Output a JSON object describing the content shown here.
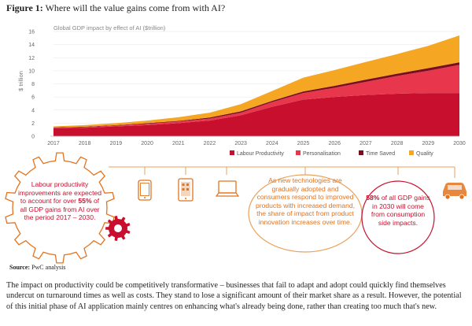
{
  "figure": {
    "label": "Figure 1:",
    "title": "Where will the value gains come from with AI?"
  },
  "chart_data": {
    "type": "area",
    "stacked": true,
    "subtitle": "Global GDP impact by effect of AI ($trillion)",
    "ylabel": "$ trillion",
    "xlabel": "",
    "x": [
      "2017",
      "2018",
      "2019",
      "2020",
      "2021",
      "2022",
      "2023",
      "2024",
      "2025",
      "2026",
      "2027",
      "2028",
      "2029",
      "2030"
    ],
    "yticks": [
      0,
      2,
      4,
      6,
      8,
      10,
      12,
      14,
      16
    ],
    "ylim": [
      0,
      16
    ],
    "grid": true,
    "legend_position": "bottom-right",
    "series": [
      {
        "name": "Labour Productivity",
        "color": "#c8102e",
        "values": [
          1.2,
          1.3,
          1.5,
          1.7,
          2.0,
          2.4,
          3.2,
          4.5,
          5.6,
          6.0,
          6.3,
          6.5,
          6.6,
          6.6
        ]
      },
      {
        "name": "Personalisation",
        "color": "#e8364c",
        "values": [
          0.1,
          0.1,
          0.15,
          0.2,
          0.25,
          0.3,
          0.4,
          0.7,
          1.0,
          1.4,
          2.0,
          2.7,
          3.4,
          4.3
        ]
      },
      {
        "name": "Time Saved",
        "color": "#7a0e1f",
        "values": [
          0.05,
          0.05,
          0.05,
          0.1,
          0.1,
          0.15,
          0.2,
          0.2,
          0.25,
          0.3,
          0.35,
          0.35,
          0.4,
          0.4
        ]
      },
      {
        "name": "Quality",
        "color": "#f5a623",
        "values": [
          0.15,
          0.25,
          0.3,
          0.4,
          0.55,
          0.75,
          1.1,
          1.5,
          2.1,
          2.4,
          2.7,
          3.0,
          3.4,
          4.1
        ]
      }
    ]
  },
  "infographic": {
    "gear_text": {
      "pre": "Labour productivity improvements are expected to account for over ",
      "highlight": "55%",
      "post": " of all GDP gains from AI over the period 2017 – 2030."
    },
    "oval_text": "As new technologies are gradually adopted and consumers respond to improved products with increased demand, the share of impact from product innovation increases over time.",
    "circle_text": {
      "highlight": "58%",
      "post": " of all GDP gains in 2030 will come from consumption side impacts."
    },
    "icons": [
      "gear-icon",
      "phone-icon",
      "tablet-icon",
      "laptop-icon",
      "car-icon"
    ],
    "colors": {
      "red": "#c8102e",
      "orange": "#e2731f",
      "line": "#e8a25c"
    }
  },
  "source": {
    "label": "Source:",
    "text": "PwC analysis"
  },
  "body_text": "The impact on productivity could be competitively transformative – businesses that fail to adapt and adopt could quickly find themselves undercut on turnaround times as well as costs. They stand to lose a significant amount of their market share as a result. However, the potential of this initial phase of AI application mainly centres on enhancing what's already being done, rather than creating too much that's new."
}
